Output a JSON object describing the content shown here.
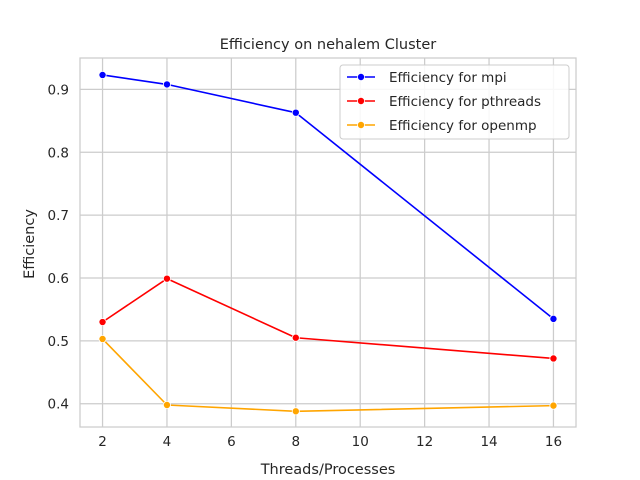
{
  "chart_data": {
    "type": "line",
    "title": "Efficiency on nehalem Cluster",
    "xlabel": "Threads/Processes",
    "ylabel": "Efficiency",
    "xlim": [
      1.3,
      16.7
    ],
    "ylim": [
      0.363,
      0.95
    ],
    "xticks": [
      2,
      4,
      6,
      8,
      10,
      12,
      14,
      16
    ],
    "yticks": [
      0.4,
      0.5,
      0.6,
      0.7,
      0.8,
      0.9
    ],
    "xtick_labels": [
      "2",
      "4",
      "6",
      "8",
      "10",
      "12",
      "14",
      "16"
    ],
    "ytick_labels": [
      "0.4",
      "0.5",
      "0.6",
      "0.7",
      "0.8",
      "0.9"
    ],
    "grid": true,
    "legend_position": "top-right",
    "x": [
      2,
      4,
      8,
      16
    ],
    "series": [
      {
        "name": "Efficiency for mpi",
        "color": "#0000ff",
        "values": [
          0.923,
          0.908,
          0.863,
          0.535
        ]
      },
      {
        "name": "Efficiency for pthreads",
        "color": "#ff0000",
        "values": [
          0.53,
          0.599,
          0.505,
          0.472
        ]
      },
      {
        "name": "Efficiency for openmp",
        "color": "#ffa500",
        "values": [
          0.503,
          0.398,
          0.388,
          0.397
        ]
      }
    ]
  }
}
